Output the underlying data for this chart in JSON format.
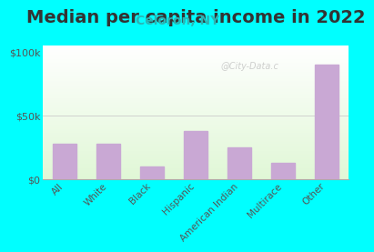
{
  "title": "Median per capita income in 2022",
  "subtitle": "Celoron, NY",
  "categories": [
    "All",
    "White",
    "Black",
    "Hispanic",
    "American Indian",
    "Multirace",
    "Other"
  ],
  "values": [
    28000,
    28000,
    10000,
    38000,
    25000,
    13000,
    90000
  ],
  "bar_color": "#c9a8d4",
  "yticks": [
    0,
    50000,
    100000
  ],
  "ytick_labels": [
    "$0",
    "$50k",
    "$100k"
  ],
  "ylim": [
    0,
    105000
  ],
  "background_outer": "#00FFFF",
  "title_fontsize": 14,
  "subtitle_fontsize": 10,
  "subtitle_color": "#2ab5b5",
  "tick_color": "#555555",
  "watermark": "@City-Data.c",
  "watermark_color": "#aaaaaa"
}
